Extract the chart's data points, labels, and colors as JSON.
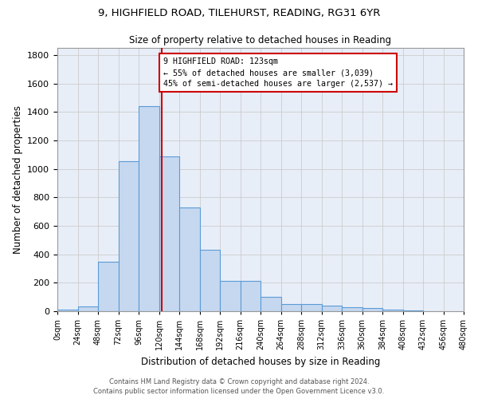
{
  "title_line1": "9, HIGHFIELD ROAD, TILEHURST, READING, RG31 6YR",
  "title_line2": "Size of property relative to detached houses in Reading",
  "xlabel": "Distribution of detached houses by size in Reading",
  "ylabel": "Number of detached properties",
  "bar_values": [
    10,
    35,
    350,
    1055,
    1440,
    1090,
    730,
    430,
    215,
    215,
    100,
    50,
    50,
    40,
    30,
    20,
    10,
    5,
    2,
    1
  ],
  "bin_edges": [
    0,
    24,
    48,
    72,
    96,
    120,
    144,
    168,
    192,
    216,
    240,
    264,
    288,
    312,
    336,
    360,
    384,
    408,
    432,
    456,
    480
  ],
  "bar_color": "#c5d8f0",
  "bar_edge_color": "#5b9bd5",
  "property_size": 123,
  "vline_x": 123,
  "vline_color": "#cc0000",
  "annotation_line1": "9 HIGHFIELD ROAD: 123sqm",
  "annotation_line2": "← 55% of detached houses are smaller (3,039)",
  "annotation_line3": "45% of semi-detached houses are larger (2,537) →",
  "annotation_box_color": "#cc0000",
  "annotation_bg": "#ffffff",
  "ylim": [
    0,
    1850
  ],
  "xlim": [
    0,
    480
  ],
  "yticks": [
    0,
    200,
    400,
    600,
    800,
    1000,
    1200,
    1400,
    1600,
    1800
  ],
  "xtick_labels": [
    "0sqm",
    "24sqm",
    "48sqm",
    "72sqm",
    "96sqm",
    "120sqm",
    "144sqm",
    "168sqm",
    "192sqm",
    "216sqm",
    "240sqm",
    "264sqm",
    "288sqm",
    "312sqm",
    "336sqm",
    "360sqm",
    "384sqm",
    "408sqm",
    "432sqm",
    "456sqm",
    "480sqm"
  ],
  "footer_line1": "Contains HM Land Registry data © Crown copyright and database right 2024.",
  "footer_line2": "Contains public sector information licensed under the Open Government Licence v3.0.",
  "grid_color": "#cccccc",
  "background_color": "#e8eef8"
}
